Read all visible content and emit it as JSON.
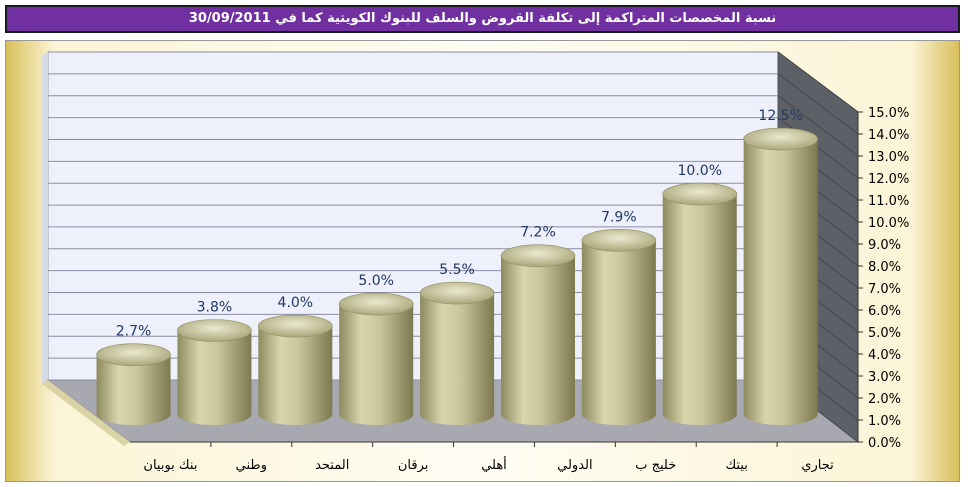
{
  "title": "نسبة المخصصات المتراكمة إلى تكلفة القروض والسلف للبنوك الكويتية كما في 30/09/2011",
  "colors": {
    "title_bg": "#7030a0",
    "bar": "#c8c49a",
    "wall": "#eef1fb",
    "floor": "#a8a8b0",
    "side": "#5e6068",
    "label": "#1f3864"
  },
  "chart_data": {
    "type": "bar",
    "title": "نسبة المخصصات المتراكمة إلى تكلفة القروض والسلف للبنوك الكويتية كما في 30/09/2011",
    "categories": [
      "بنك بوبيان",
      "وطني",
      "المتحد",
      "برقان",
      "أهلي",
      "الدولي",
      "خليج ب",
      "بيتك",
      "تجاري"
    ],
    "values": [
      2.7,
      3.8,
      4.0,
      5.0,
      5.5,
      7.2,
      7.9,
      10.0,
      12.5
    ],
    "value_labels": [
      "2.7%",
      "3.8%",
      "4.0%",
      "5.0%",
      "5.5%",
      "7.2%",
      "7.9%",
      "10.0%",
      "12.5%"
    ],
    "ylim": [
      0,
      15
    ],
    "yticks": [
      "0.0%",
      "1.0%",
      "2.0%",
      "3.0%",
      "4.0%",
      "5.0%",
      "6.0%",
      "7.0%",
      "8.0%",
      "9.0%",
      "10.0%",
      "11.0%",
      "12.0%",
      "13.0%",
      "14.0%",
      "15.0%"
    ],
    "y_axis_position": "right",
    "grid": true,
    "legend": "none",
    "style": "3d-cylinder"
  }
}
